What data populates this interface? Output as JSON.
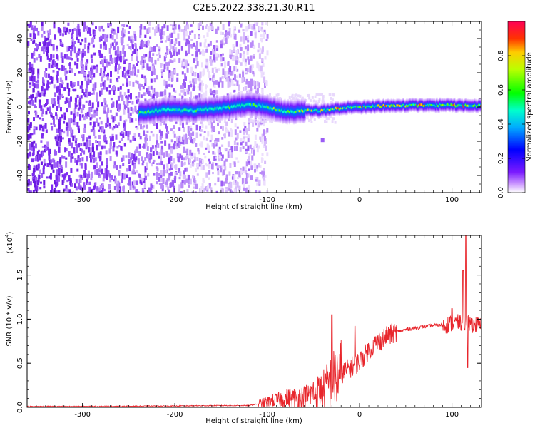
{
  "title": "C2E5.2022.338.21.30.R11",
  "chart_data": [
    {
      "type": "heatmap",
      "xlabel": "Height of straight line (km)",
      "ylabel": "Frequency (Hz)",
      "xlim": [
        -360,
        132
      ],
      "ylim": [
        -50,
        50
      ],
      "xticks": [
        -300,
        -200,
        -100,
        0,
        100
      ],
      "yticks": [
        -40,
        -20,
        0,
        20,
        40
      ],
      "colorbar": {
        "label": "Normalized spectral amplitude",
        "range": [
          0.0,
          1.0
        ],
        "ticks": [
          0.0,
          0.2,
          0.4,
          0.6,
          0.8
        ]
      },
      "ridge": {
        "x": [
          -240,
          -210,
          -180,
          -160,
          -140,
          -120,
          -100,
          -80,
          -60,
          -40,
          -20,
          0,
          20,
          60,
          100,
          132
        ],
        "center_hz": [
          -3.5,
          -1.5,
          -2,
          -1,
          0,
          1.5,
          0,
          -3,
          -2,
          -2,
          -0.5,
          0,
          0.5,
          1,
          1,
          0.5
        ]
      },
      "noise_region": {
        "x_from": -360,
        "x_to": -120
      }
    },
    {
      "type": "line",
      "xlabel": "Height of straight line (km)",
      "ylabel": "SNR (10 * v/v)",
      "scale_label": "(x10",
      "scale_exp": "4",
      "xlim": [
        -360,
        132
      ],
      "ylim": [
        0.0,
        1.95
      ],
      "xticks": [
        -300,
        -200,
        -100,
        0,
        100
      ],
      "yticks": [
        "0.0",
        "0.5",
        "1.0",
        "1.5"
      ],
      "line_color": "#e8262c",
      "envelope": {
        "x": [
          -360,
          -300,
          -200,
          -150,
          -120,
          -100,
          -80,
          -60,
          -40,
          -30,
          -20,
          -10,
          0,
          10,
          20,
          40,
          60,
          80,
          90,
          100,
          110,
          120,
          132
        ],
        "y": [
          0.01,
          0.01,
          0.015,
          0.02,
          0.02,
          0.06,
          0.1,
          0.12,
          0.2,
          0.3,
          0.38,
          0.45,
          0.52,
          0.65,
          0.75,
          0.86,
          0.9,
          0.93,
          0.93,
          0.95,
          0.96,
          0.95,
          0.92
        ]
      },
      "spikes": [
        {
          "x": -30,
          "y": 1.05
        },
        {
          "x": -5,
          "y": 0.92
        },
        {
          "x": 100,
          "y": 1.12
        },
        {
          "x": 112,
          "y": 1.55
        },
        {
          "x": 115,
          "y": 1.95
        },
        {
          "x": 117,
          "y": 0.45
        }
      ]
    }
  ]
}
